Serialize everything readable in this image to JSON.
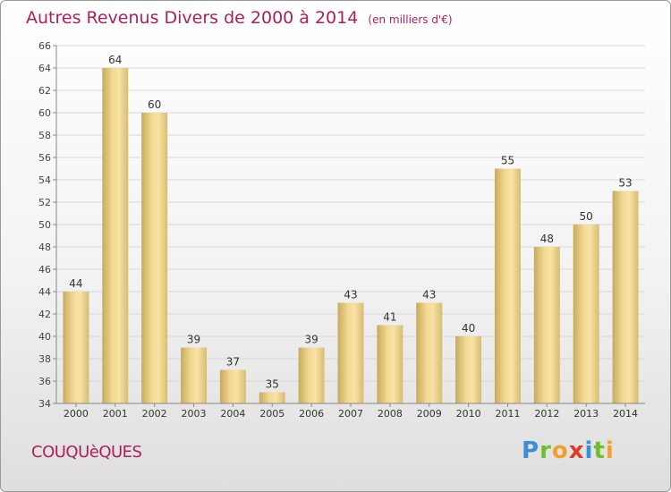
{
  "header": {
    "title": "Autres Revenus Divers de 2000 à 2014",
    "unit": "(en milliers d'€)"
  },
  "footer": {
    "commune": "COUQUèQUES",
    "logo": [
      "P",
      "r",
      "o",
      "x",
      "i",
      "t",
      "i"
    ]
  },
  "colors": {
    "title": "#b01e5a",
    "bar_light": "#f6dd9a",
    "bar_dark": "#c4a95c",
    "grid": "#d8d8d8"
  },
  "chart_data": {
    "type": "bar",
    "categories": [
      "2000",
      "2001",
      "2002",
      "2003",
      "2004",
      "2005",
      "2006",
      "2007",
      "2008",
      "2009",
      "2010",
      "2011",
      "2012",
      "2013",
      "2014"
    ],
    "values": [
      44,
      64,
      60,
      39,
      37,
      35,
      39,
      43,
      41,
      43,
      40,
      55,
      48,
      50,
      53
    ],
    "ylim": [
      34,
      66
    ],
    "yticks": [
      34,
      36,
      38,
      40,
      42,
      44,
      46,
      48,
      50,
      52,
      54,
      56,
      58,
      60,
      62,
      64,
      66
    ],
    "grid": true
  }
}
